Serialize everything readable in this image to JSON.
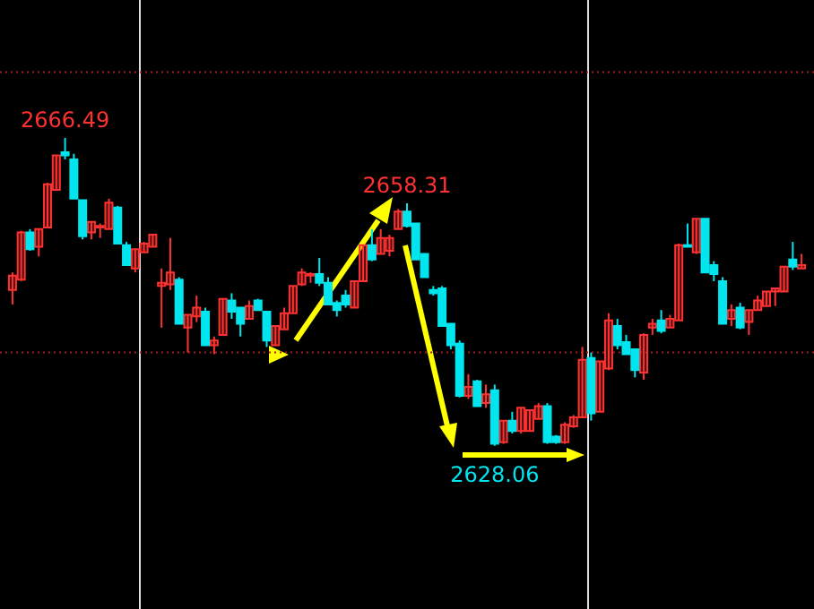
{
  "chart_data": {
    "type": "candlestick",
    "categories": [
      null,
      null,
      null,
      null,
      null,
      null,
      null,
      null,
      null,
      null,
      null,
      null,
      null,
      null,
      null,
      null,
      null,
      null,
      null,
      null,
      null,
      null,
      null,
      null,
      null,
      null,
      null,
      null,
      null,
      null,
      null,
      null,
      null,
      null,
      null,
      null,
      null,
      null,
      null,
      null,
      null,
      null,
      null,
      null,
      null,
      null,
      null,
      null,
      null,
      null,
      null,
      null,
      null,
      null,
      null,
      null,
      null,
      null,
      null,
      null,
      null,
      null,
      null,
      null,
      null,
      null,
      null,
      null,
      null,
      null,
      null,
      null,
      null,
      null,
      null,
      null,
      null,
      null,
      null,
      null,
      null,
      null,
      null,
      null,
      null,
      null,
      null,
      null,
      null,
      null,
      null
    ],
    "ohlc": [
      [
        2647.5,
        2649.7,
        2645.7,
        2649.3
      ],
      [
        2648.8,
        2654.9,
        2648.6,
        2654.7
      ],
      [
        2654.7,
        2655.1,
        2652.4,
        2652.6
      ],
      [
        2652.9,
        2655.1,
        2651.7,
        2655.1
      ],
      [
        2655.3,
        2660.9,
        2655.3,
        2660.7
      ],
      [
        2660.0,
        2664.3,
        2660.0,
        2664.3
      ],
      [
        2664.7,
        2666.49,
        2663.8,
        2664.3
      ],
      [
        2663.8,
        2664.5,
        2658.9,
        2658.9
      ],
      [
        2658.7,
        2658.7,
        2653.8,
        2654.2
      ],
      [
        2654.7,
        2656.0,
        2653.8,
        2656.0
      ],
      [
        2655.3,
        2655.8,
        2654.0,
        2655.5
      ],
      [
        2655.1,
        2658.9,
        2655.1,
        2658.4
      ],
      [
        2657.8,
        2658.0,
        2653.3,
        2653.3
      ],
      [
        2653.1,
        2653.5,
        2650.6,
        2650.6
      ],
      [
        2650.2,
        2652.6,
        2649.7,
        2652.6
      ],
      [
        2652.2,
        2653.5,
        2652.2,
        2653.3
      ],
      [
        2652.9,
        2654.4,
        2652.9,
        2654.4
      ],
      [
        2648.0,
        2650.2,
        2642.8,
        2648.4
      ],
      [
        2648.2,
        2654.0,
        2647.5,
        2649.7
      ],
      [
        2648.8,
        2649.1,
        2643.3,
        2643.3
      ],
      [
        2642.8,
        2644.4,
        2639.7,
        2644.4
      ],
      [
        2644.2,
        2646.8,
        2643.5,
        2645.3
      ],
      [
        2644.8,
        2645.3,
        2640.6,
        2640.6
      ],
      [
        2640.6,
        2641.7,
        2639.5,
        2641.2
      ],
      [
        2641.9,
        2646.4,
        2641.9,
        2646.4
      ],
      [
        2646.2,
        2647.1,
        2643.9,
        2644.8
      ],
      [
        2645.3,
        2645.3,
        2641.7,
        2643.3
      ],
      [
        2643.9,
        2646.2,
        2643.9,
        2645.5
      ],
      [
        2646.2,
        2646.4,
        2645.0,
        2645.0
      ],
      [
        2644.8,
        2644.8,
        2640.4,
        2641.2
      ],
      [
        2640.6,
        2643.0,
        2640.6,
        2643.0
      ],
      [
        2642.6,
        2645.3,
        2642.6,
        2644.6
      ],
      [
        2644.6,
        2648.0,
        2644.6,
        2648.0
      ],
      [
        2648.2,
        2650.2,
        2648.0,
        2649.7
      ],
      [
        2649.3,
        2649.7,
        2648.4,
        2649.5
      ],
      [
        2649.5,
        2651.5,
        2648.0,
        2648.4
      ],
      [
        2648.4,
        2649.1,
        2645.7,
        2645.7
      ],
      [
        2645.9,
        2646.2,
        2644.2,
        2645.0
      ],
      [
        2646.8,
        2647.5,
        2645.3,
        2645.7
      ],
      [
        2645.3,
        2648.6,
        2645.3,
        2648.6
      ],
      [
        2648.6,
        2653.1,
        2648.6,
        2653.1
      ],
      [
        2653.1,
        2655.1,
        2651.1,
        2651.3
      ],
      [
        2652.0,
        2655.1,
        2652.0,
        2654.0
      ],
      [
        2652.4,
        2654.4,
        2651.7,
        2654.0
      ],
      [
        2655.1,
        2657.6,
        2655.1,
        2657.3
      ],
      [
        2657.3,
        2658.31,
        2655.3,
        2655.5
      ],
      [
        2655.8,
        2655.8,
        2651.3,
        2651.3
      ],
      [
        2652.0,
        2652.0,
        2649.1,
        2649.1
      ],
      [
        2647.5,
        2648.0,
        2646.8,
        2647.1
      ],
      [
        2647.7,
        2648.0,
        2643.0,
        2643.0
      ],
      [
        2643.3,
        2643.3,
        2640.1,
        2640.6
      ],
      [
        2640.8,
        2641.2,
        2634.1,
        2634.3
      ],
      [
        2634.3,
        2637.0,
        2633.9,
        2635.4
      ],
      [
        2636.1,
        2636.3,
        2633.0,
        2633.0
      ],
      [
        2633.4,
        2635.7,
        2632.8,
        2634.5
      ],
      [
        2635.0,
        2635.7,
        2628.06,
        2628.3
      ],
      [
        2628.5,
        2631.2,
        2628.3,
        2631.2
      ],
      [
        2631.2,
        2632.3,
        2629.6,
        2629.9
      ],
      [
        2629.9,
        2632.8,
        2629.6,
        2632.8
      ],
      [
        2629.9,
        2632.5,
        2629.9,
        2632.5
      ],
      [
        2631.4,
        2633.4,
        2631.4,
        2633.0
      ],
      [
        2633.0,
        2633.4,
        2628.3,
        2628.5
      ],
      [
        2629.2,
        2629.4,
        2628.3,
        2628.5
      ],
      [
        2628.5,
        2631.0,
        2628.3,
        2630.7
      ],
      [
        2630.5,
        2631.9,
        2630.3,
        2631.6
      ],
      [
        2631.6,
        2640.4,
        2631.6,
        2638.8
      ],
      [
        2639.0,
        2639.7,
        2631.2,
        2632.1
      ],
      [
        2632.3,
        2638.6,
        2632.3,
        2638.6
      ],
      [
        2637.7,
        2644.6,
        2637.5,
        2643.7
      ],
      [
        2643.0,
        2643.9,
        2640.1,
        2640.6
      ],
      [
        2641.0,
        2641.9,
        2639.5,
        2639.5
      ],
      [
        2640.1,
        2640.1,
        2636.6,
        2637.5
      ],
      [
        2637.2,
        2642.1,
        2636.3,
        2641.9
      ],
      [
        2642.8,
        2643.9,
        2641.9,
        2643.3
      ],
      [
        2643.7,
        2645.0,
        2642.1,
        2642.4
      ],
      [
        2642.8,
        2644.4,
        2642.8,
        2643.9
      ],
      [
        2643.7,
        2653.3,
        2643.7,
        2653.1
      ],
      [
        2653.1,
        2655.8,
        2652.9,
        2652.9
      ],
      [
        2652.2,
        2656.4,
        2652.0,
        2656.4
      ],
      [
        2656.4,
        2656.4,
        2649.7,
        2649.7
      ],
      [
        2650.6,
        2651.1,
        2648.6,
        2649.5
      ],
      [
        2648.6,
        2649.1,
        2643.3,
        2643.3
      ],
      [
        2643.9,
        2645.7,
        2643.0,
        2645.0
      ],
      [
        2645.3,
        2645.9,
        2642.6,
        2642.8
      ],
      [
        2643.5,
        2645.0,
        2641.9,
        2645.0
      ],
      [
        2645.0,
        2646.8,
        2645.0,
        2646.2
      ],
      [
        2645.5,
        2647.3,
        2645.5,
        2647.3
      ],
      [
        2647.3,
        2647.7,
        2645.5,
        2647.7
      ],
      [
        2647.3,
        2650.4,
        2647.3,
        2650.4
      ],
      [
        2651.3,
        2653.5,
        2650.0,
        2650.4
      ],
      [
        2650.2,
        2652.0,
        2650.2,
        2650.6
      ]
    ],
    "ref_lines": [
      {
        "axis": "y",
        "value": 2674.7,
        "color": "#a02020",
        "line_style": "dotted"
      },
      {
        "axis": "y",
        "value": 2639.7,
        "color": "#a02020",
        "line_style": "dotted"
      }
    ],
    "annotations": [
      {
        "text": "2666.49",
        "y": 2666.49
      },
      {
        "text": "2658.31",
        "y": 2658.31
      },
      {
        "text": "2628.06",
        "y": 2628.06
      }
    ]
  }
}
